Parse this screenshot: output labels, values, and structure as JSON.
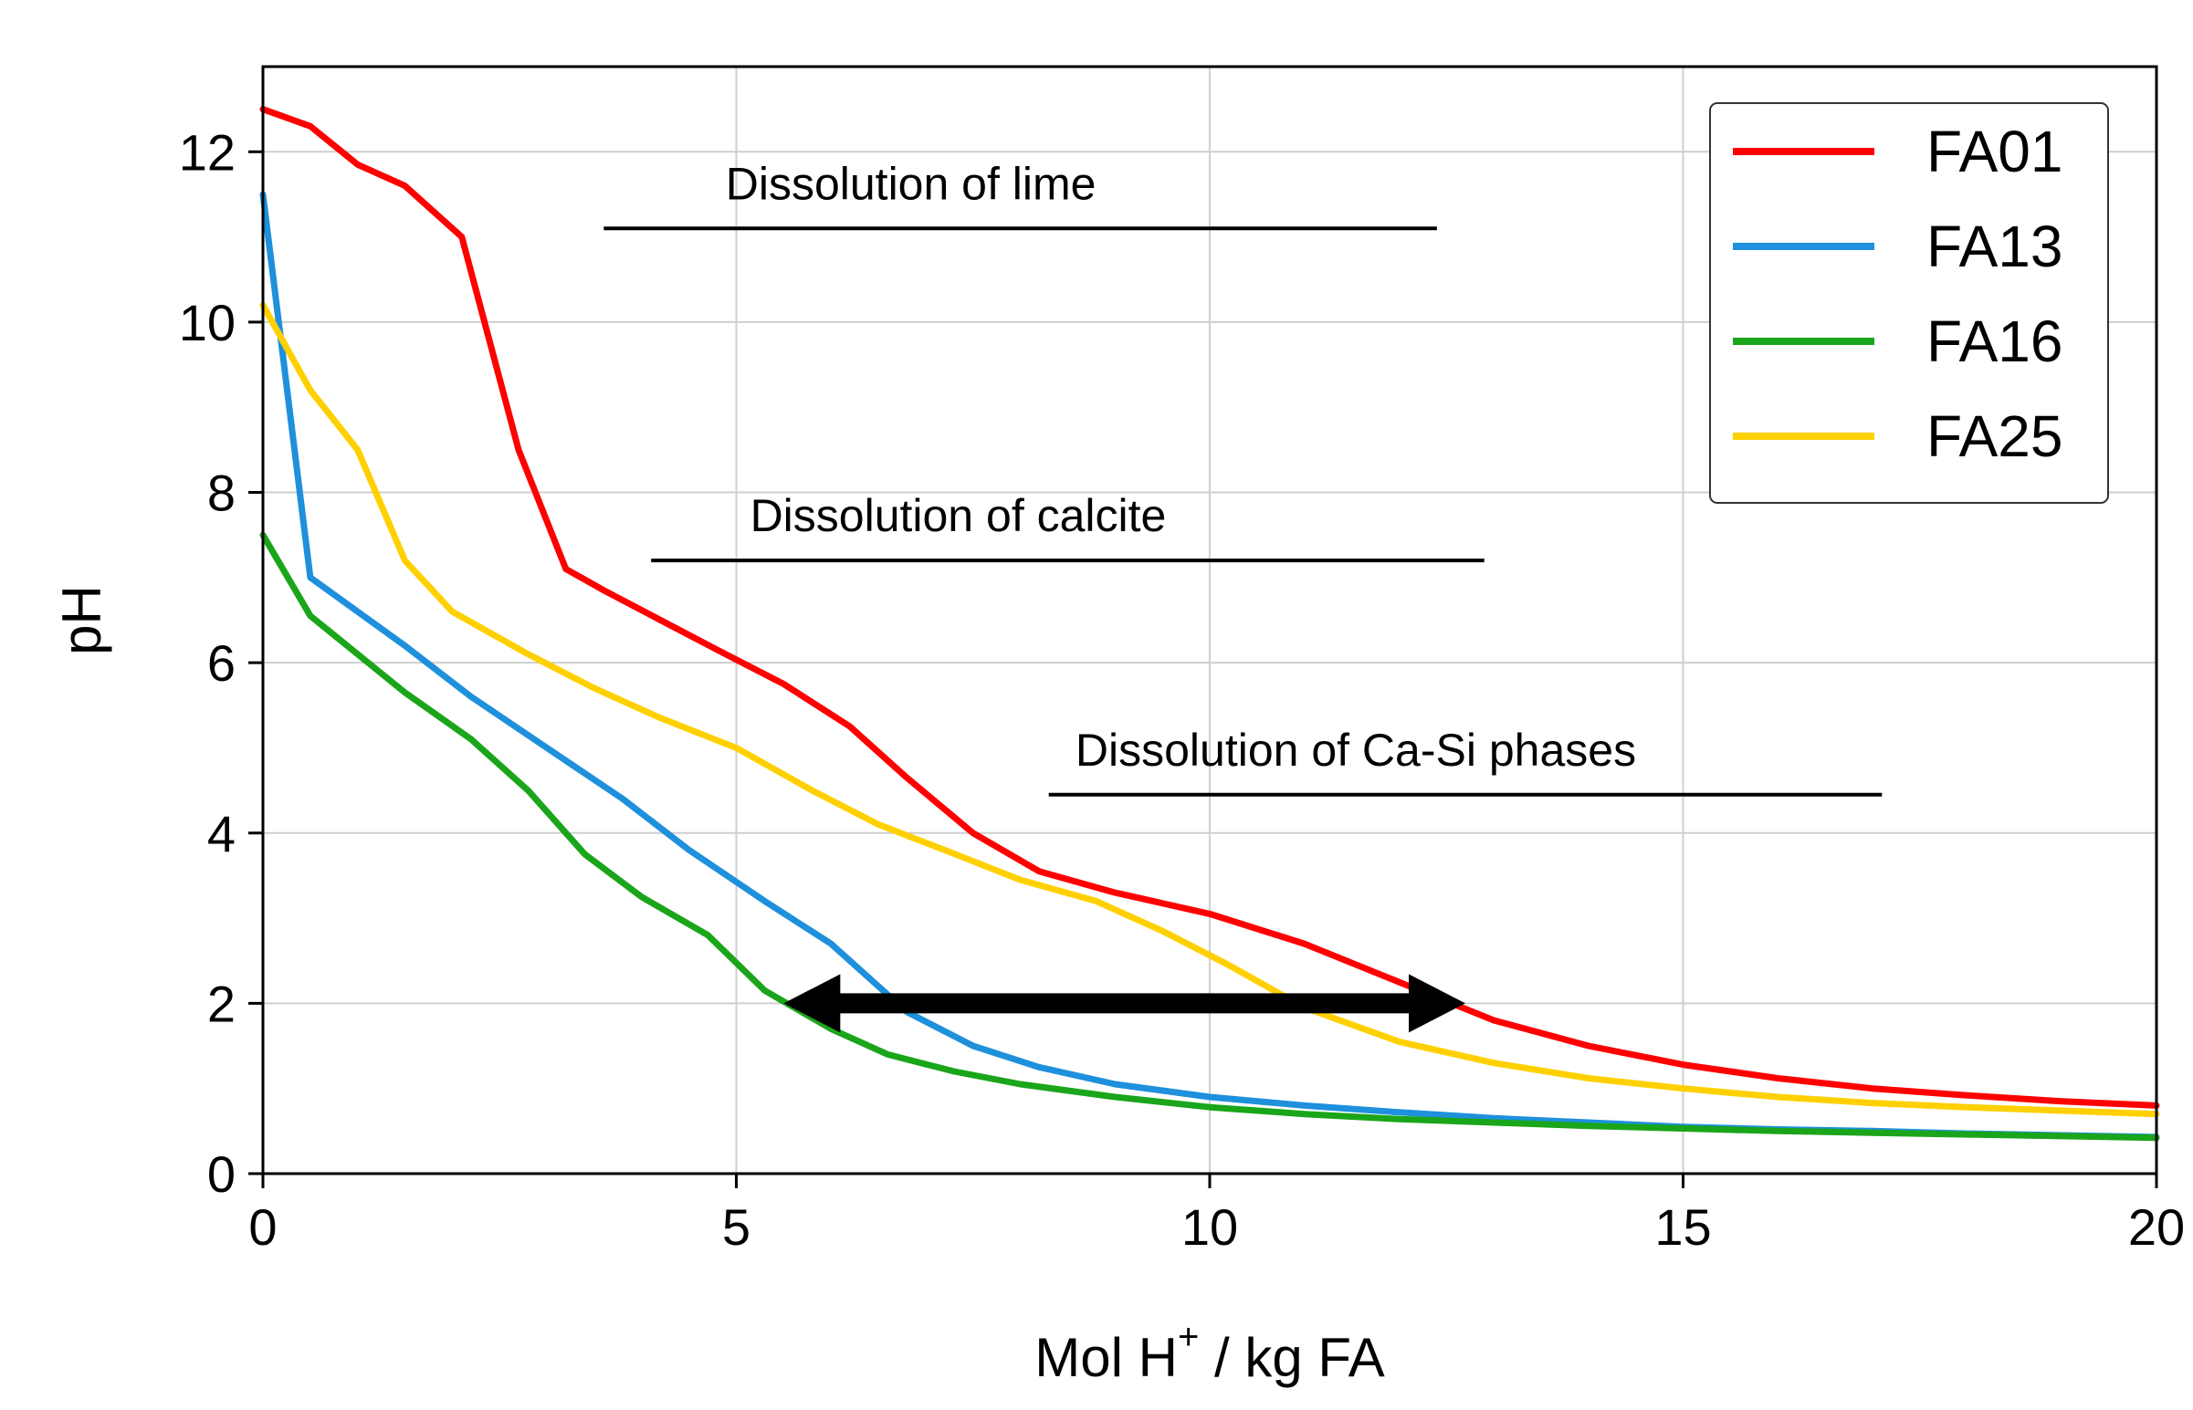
{
  "chart_data": {
    "type": "line",
    "title": "",
    "xlabel_main": "Mol H",
    "xlabel_sup": "+",
    "xlabel_rest": " / kg FA",
    "ylabel": "pH",
    "xlim": [
      0,
      20
    ],
    "ylim": [
      0,
      13
    ],
    "xticks": [
      "0",
      "5",
      "10",
      "15",
      "20"
    ],
    "yticks": [
      "0",
      "2",
      "4",
      "6",
      "8",
      "10",
      "12"
    ],
    "grid": true,
    "legend_position": "top-right",
    "series": [
      {
        "name": "FA01",
        "color": "#ff0000",
        "x": [
          0,
          0.5,
          1,
          1.5,
          2.1,
          2.7,
          3.2,
          3.6,
          4.2,
          4.8,
          5.5,
          6.2,
          6.8,
          7.5,
          8.2,
          9,
          10,
          11,
          12,
          13,
          14,
          15,
          16,
          17,
          18,
          19,
          20
        ],
        "y": [
          12.5,
          12.3,
          11.85,
          11.6,
          11.0,
          8.5,
          7.1,
          6.85,
          6.5,
          6.15,
          5.75,
          5.25,
          4.65,
          4.0,
          3.55,
          3.3,
          3.05,
          2.7,
          2.25,
          1.8,
          1.5,
          1.28,
          1.12,
          1.0,
          0.92,
          0.85,
          0.8
        ]
      },
      {
        "name": "FA13",
        "color": "#1e90dc",
        "x": [
          0,
          0.5,
          1,
          1.5,
          2.2,
          3,
          3.8,
          4.5,
          5.3,
          6,
          6.8,
          7.5,
          8.2,
          9,
          10,
          11,
          12,
          13,
          14,
          15,
          16,
          17,
          18,
          19,
          20
        ],
        "y": [
          11.5,
          7.0,
          6.6,
          6.2,
          5.6,
          5.0,
          4.4,
          3.8,
          3.2,
          2.7,
          1.9,
          1.5,
          1.25,
          1.05,
          0.9,
          0.8,
          0.72,
          0.65,
          0.6,
          0.55,
          0.52,
          0.5,
          0.47,
          0.45,
          0.43
        ]
      },
      {
        "name": "FA16",
        "color": "#1aa51a",
        "x": [
          0,
          0.5,
          1,
          1.5,
          2.2,
          2.8,
          3.4,
          4,
          4.7,
          5.3,
          6,
          6.6,
          7.3,
          8,
          9,
          10,
          11,
          12,
          13,
          14,
          15,
          16,
          17,
          18,
          19,
          20
        ],
        "y": [
          7.5,
          6.55,
          6.1,
          5.65,
          5.1,
          4.5,
          3.75,
          3.25,
          2.8,
          2.15,
          1.7,
          1.4,
          1.2,
          1.05,
          0.9,
          0.78,
          0.7,
          0.64,
          0.6,
          0.56,
          0.53,
          0.5,
          0.48,
          0.46,
          0.44,
          0.42
        ]
      },
      {
        "name": "FA25",
        "color": "#ffd000",
        "x": [
          0,
          0.5,
          1,
          1.5,
          2,
          2.8,
          3.5,
          4.2,
          5,
          5.8,
          6.5,
          7.2,
          8,
          8.8,
          9.5,
          10.2,
          11,
          12,
          13,
          14,
          15,
          16,
          17,
          18,
          19,
          20
        ],
        "y": [
          10.2,
          9.2,
          8.5,
          7.2,
          6.6,
          6.1,
          5.7,
          5.35,
          5.0,
          4.5,
          4.1,
          3.8,
          3.45,
          3.2,
          2.85,
          2.45,
          1.95,
          1.55,
          1.3,
          1.12,
          1.0,
          0.9,
          0.83,
          0.78,
          0.74,
          0.7
        ]
      }
    ],
    "annotations": [
      {
        "text": "Dissolution of lime",
        "x_start": 3.6,
        "x_end": 12.4,
        "y": 11.1
      },
      {
        "text": "Dissolution of calcite",
        "x_start": 4.1,
        "x_end": 12.9,
        "y": 7.2
      },
      {
        "text": "Dissolution of Ca-Si phases",
        "x_start": 8.3,
        "x_end": 17.1,
        "y": 4.45
      }
    ],
    "double_arrow": {
      "x_start": 5.5,
      "x_end": 12.7,
      "y": 2.0
    }
  }
}
